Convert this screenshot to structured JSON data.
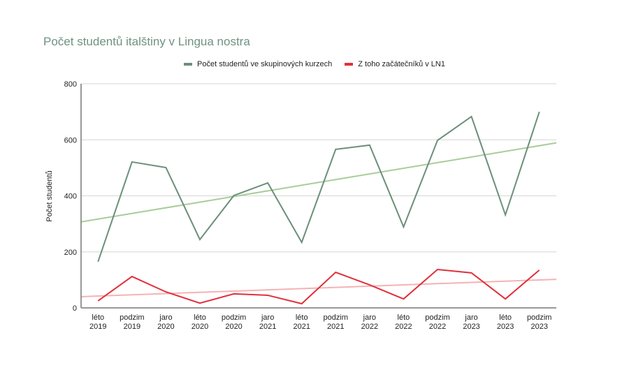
{
  "chart_data": {
    "type": "line",
    "title": "Počet studentů italštiny v Lingua nostra",
    "xlabel": "",
    "ylabel": "Počet studentů",
    "ylim": [
      0,
      800
    ],
    "yticks": [
      0,
      200,
      400,
      600,
      800
    ],
    "grid": true,
    "legend_position": "top",
    "categories": [
      [
        "léto",
        "2019"
      ],
      [
        "podzim",
        "2019"
      ],
      [
        "jaro",
        "2020"
      ],
      [
        "léto",
        "2020"
      ],
      [
        "podzim",
        "2020"
      ],
      [
        "jaro",
        "2021"
      ],
      [
        "léto",
        "2021"
      ],
      [
        "podzim",
        "2021"
      ],
      [
        "jaro",
        "2022"
      ],
      [
        "léto",
        "2022"
      ],
      [
        "podzim",
        "2022"
      ],
      [
        "jaro",
        "2023"
      ],
      [
        "léto",
        "2023"
      ],
      [
        "podzim",
        "2023"
      ]
    ],
    "series": [
      {
        "name": "Počet studentů ve skupinových kurzech",
        "color": "#6b8f7a",
        "values": [
          165,
          521,
          501,
          244,
          401,
          446,
          234,
          566,
          581,
          289,
          598,
          683,
          332,
          700
        ],
        "trendline": {
          "color": "#a9cc9a",
          "start": 307,
          "end": 589
        }
      },
      {
        "name": "Z toho začátečníků v LN1",
        "color": "#e0303a",
        "values": [
          25,
          112,
          57,
          17,
          50,
          45,
          15,
          127,
          82,
          32,
          137,
          125,
          32,
          135
        ],
        "trendline": {
          "color": "#f4b3b3",
          "start": 40,
          "end": 102
        }
      }
    ]
  }
}
